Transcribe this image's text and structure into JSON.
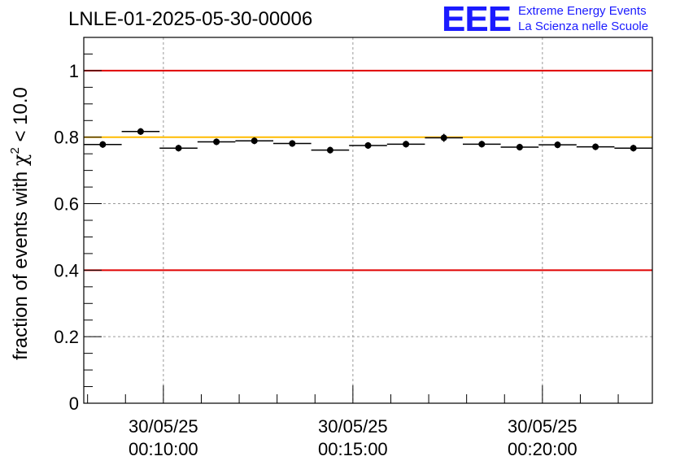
{
  "title": "LNLE-01-2025-05-30-00006",
  "logo": {
    "mark": "EEE",
    "line1": "Extreme Energy Events",
    "line2": "La Scienza nelle Scuole"
  },
  "colors": {
    "threshold_red": "#e00000",
    "threshold_yellow": "#ffbb00",
    "logo_blue": "#1a1aff"
  },
  "chart_data": {
    "type": "scatter",
    "title": "LNLE-01-2025-05-30-00006",
    "xlabel": "",
    "ylabel": "fraction of events with χ² < 10.0",
    "ylabel_parts": {
      "pre": "fraction of events with ",
      "sym": "χ",
      "sup": "2",
      "post": " < 10.0"
    },
    "ylim": [
      0,
      1.1
    ],
    "yticks": [
      "0",
      "0.2",
      "0.4",
      "0.6",
      "0.8",
      "1"
    ],
    "ytick_values": [
      0,
      0.2,
      0.4,
      0.6,
      0.8,
      1.0
    ],
    "x_start_min": 7.9,
    "x_end_min": 22.9,
    "xticks": [
      {
        "minute": 10,
        "date": "30/05/25",
        "time": "00:10:00"
      },
      {
        "minute": 15,
        "date": "30/05/25",
        "time": "00:15:00"
      },
      {
        "minute": 20,
        "date": "30/05/25",
        "time": "00:20:00"
      }
    ],
    "reference_lines": [
      {
        "y": 1.0,
        "color": "#e00000"
      },
      {
        "y": 0.8,
        "color": "#ffbb00"
      },
      {
        "y": 0.4,
        "color": "#e00000"
      }
    ],
    "grid": true,
    "series": [
      {
        "name": "fraction",
        "bin_width_min": 1,
        "x": [
          8.4,
          9.4,
          10.4,
          11.4,
          12.4,
          13.4,
          14.4,
          15.4,
          16.4,
          17.4,
          18.4,
          19.4,
          20.4,
          21.4,
          22.4
        ],
        "values": [
          0.778,
          0.817,
          0.767,
          0.786,
          0.789,
          0.781,
          0.761,
          0.775,
          0.779,
          0.798,
          0.779,
          0.77,
          0.777,
          0.771,
          0.767
        ],
        "errors": [
          0.01,
          0.01,
          0.01,
          0.01,
          0.01,
          0.01,
          0.01,
          0.01,
          0.01,
          0.012,
          0.01,
          0.01,
          0.01,
          0.01,
          0.01
        ]
      }
    ]
  }
}
